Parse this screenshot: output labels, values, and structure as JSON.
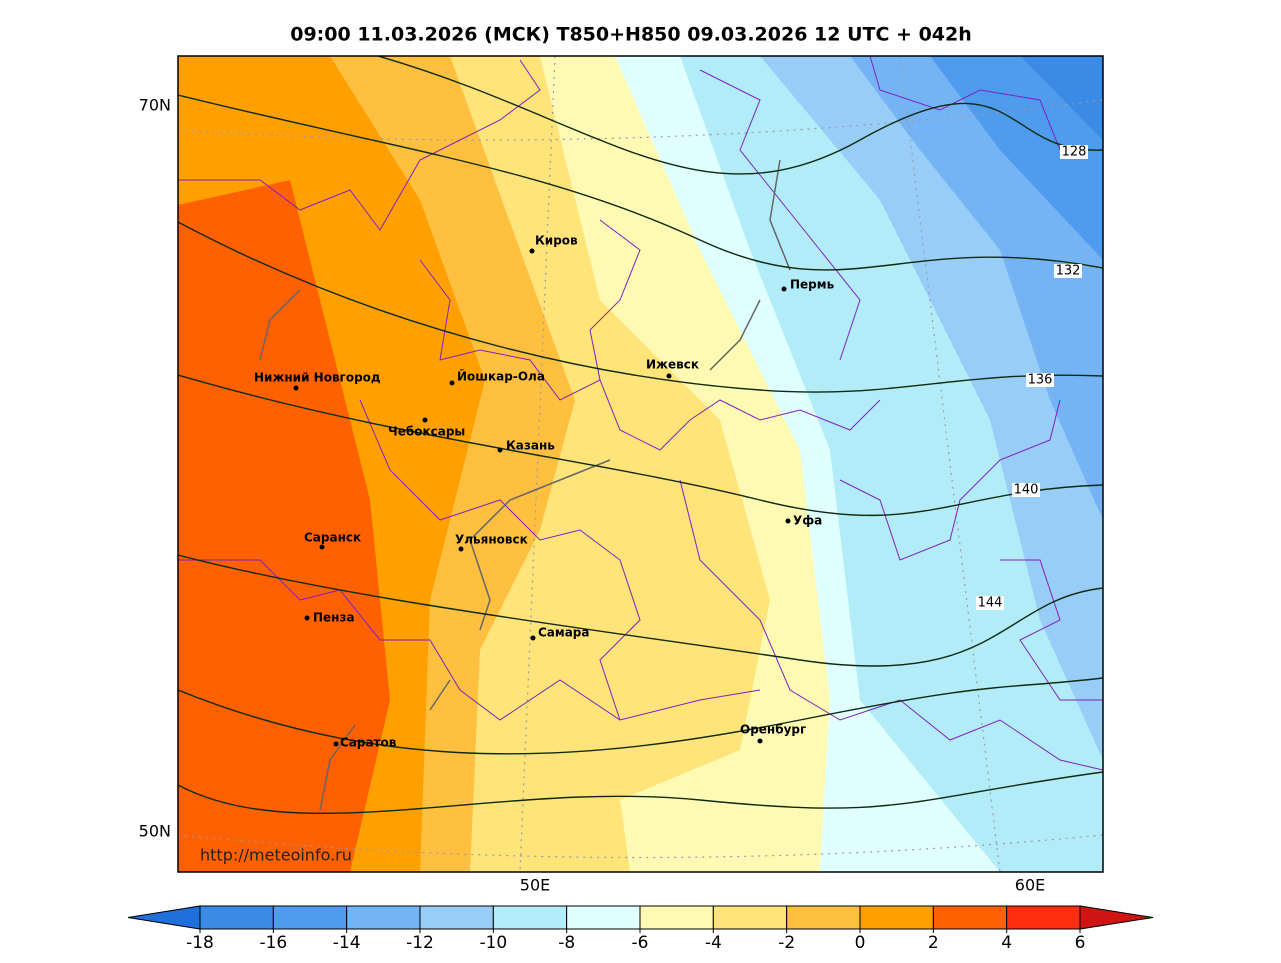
{
  "title": "09:00 11.03.2026 (МСК) T850+H850 09.03.2026 12 UTC + 042h",
  "lat_labels": [
    "70N",
    "50N"
  ],
  "lon_labels": [
    "50E",
    "60E"
  ],
  "cities": [
    "Киров",
    "Пермь",
    "Ижевск",
    "Йошкар-Ола",
    "Нижний Новгород",
    "Чебоксары",
    "Казань",
    "Уфа",
    "Саранск",
    "Ульяновск",
    "Пенза",
    "Самара",
    "Оренбург",
    "Саратов"
  ],
  "contour_labels": [
    128,
    132,
    136,
    140,
    144
  ],
  "url": "http://meteoinfo.ru",
  "colorbar": {
    "ticks": [
      -18,
      -16,
      -14,
      -12,
      -10,
      -8,
      -6,
      -4,
      -2,
      0,
      2,
      4,
      6
    ],
    "colors": [
      "#1f6fdc",
      "#3a8ae6",
      "#4f9cef",
      "#74b4f5",
      "#98cdf8",
      "#b2ecf8",
      "#e0ffff",
      "#fffab3",
      "#ffe47a",
      "#ffc040",
      "#ffa000",
      "#ff6000",
      "#ff2e10",
      "#d01414"
    ]
  }
}
